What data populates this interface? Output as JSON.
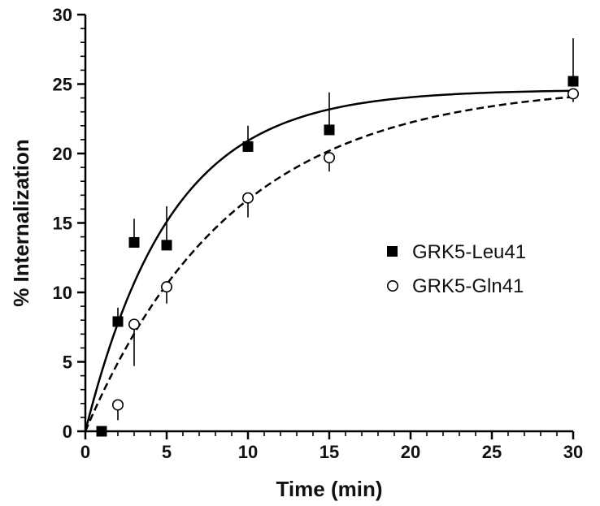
{
  "chart_data": {
    "type": "scatter",
    "title": "",
    "xlabel": "Time (min)",
    "ylabel": "% Internalization",
    "xlim": [
      0,
      30
    ],
    "ylim": [
      0,
      30
    ],
    "x_ticks": [
      0,
      5,
      10,
      15,
      20,
      25,
      30
    ],
    "x_tick_labels": [
      "0",
      "5",
      "10",
      "15",
      "20",
      "25",
      "30"
    ],
    "y_ticks": [
      0,
      5,
      10,
      15,
      20,
      25,
      30
    ],
    "y_tick_labels": [
      "0",
      "5",
      "10",
      "15",
      "20",
      "25",
      "30"
    ],
    "grid": false,
    "legend_position": "right",
    "series": [
      {
        "name": "GRK5-Leu41",
        "marker": "filled-square",
        "fit_line": "solid",
        "color": "#000000",
        "x": [
          1,
          2,
          3,
          5,
          10,
          15,
          30
        ],
        "y": [
          0.0,
          7.9,
          13.6,
          13.4,
          20.5,
          21.7,
          25.2
        ],
        "error_upper": [
          0.0,
          1.0,
          1.7,
          2.8,
          1.5,
          2.7,
          3.1
        ],
        "fit": {
          "model": "one-phase exponential association",
          "plateau": 24.6,
          "k": 0.19
        }
      },
      {
        "name": "GRK5-Gln41",
        "marker": "open-circle",
        "fit_line": "dashed",
        "color": "#000000",
        "x": [
          2,
          3,
          5,
          10,
          15,
          30
        ],
        "y": [
          1.9,
          7.7,
          10.4,
          16.8,
          19.7,
          24.3
        ],
        "error_lower": [
          1.1,
          3.0,
          1.2,
          1.4,
          1.0,
          0.6
        ],
        "fit": {
          "model": "one-phase exponential association",
          "plateau": 25.0,
          "k": 0.11
        }
      }
    ]
  }
}
